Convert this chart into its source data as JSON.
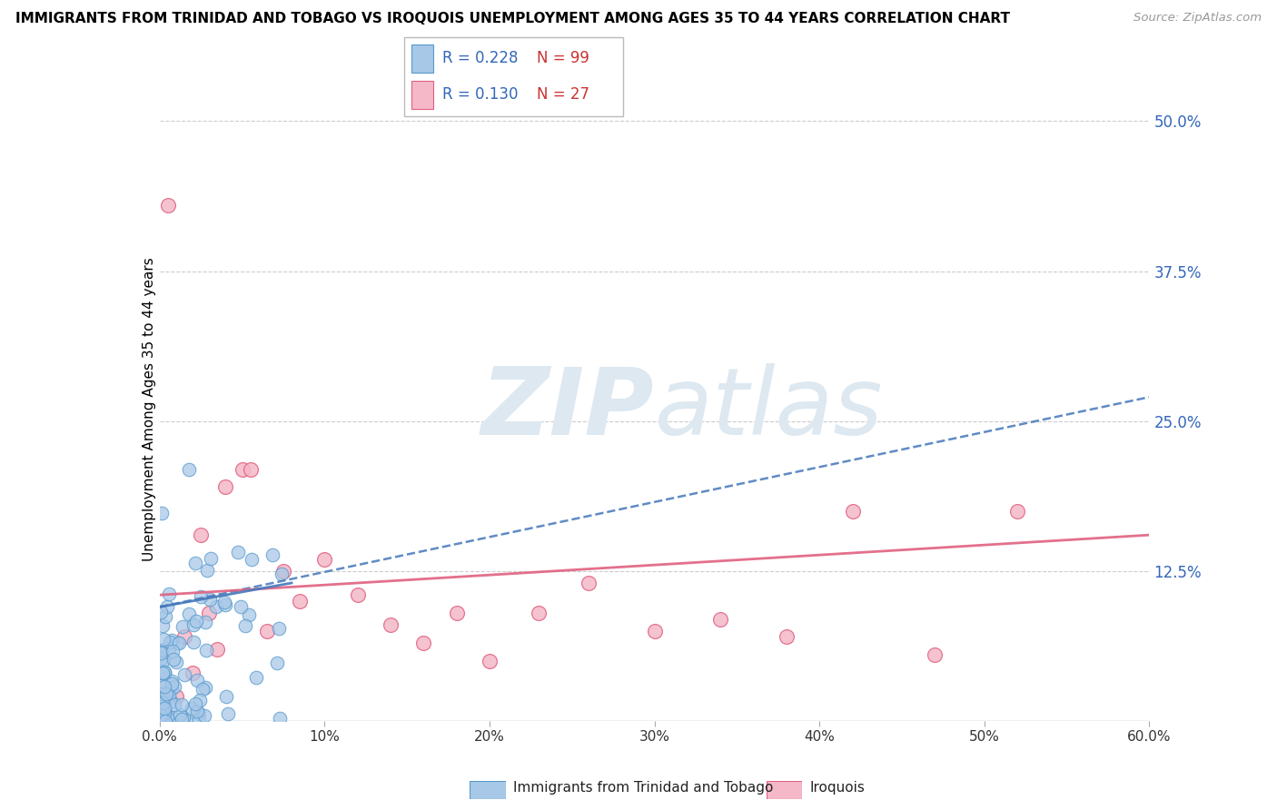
{
  "title": "IMMIGRANTS FROM TRINIDAD AND TOBAGO VS IROQUOIS UNEMPLOYMENT AMONG AGES 35 TO 44 YEARS CORRELATION CHART",
  "source": "Source: ZipAtlas.com",
  "ylabel": "Unemployment Among Ages 35 to 44 years",
  "right_yticks": [
    0.0,
    0.125,
    0.25,
    0.375,
    0.5
  ],
  "right_yticklabels": [
    "",
    "12.5%",
    "25.0%",
    "37.5%",
    "50.0%"
  ],
  "legend1_R": "0.228",
  "legend1_N": "99",
  "legend2_R": "0.130",
  "legend2_N": "27",
  "legend1_label": "Immigrants from Trinidad and Tobago",
  "legend2_label": "Iroquois",
  "blue_color": "#a8c8e8",
  "blue_edge_color": "#5599cc",
  "pink_color": "#f4b8c8",
  "pink_edge_color": "#e06080",
  "blue_line_color": "#4477bb",
  "pink_line_color": "#ee6688",
  "legend_R_color": "#3366bb",
  "legend_N_color": "#cc3333",
  "watermark_zip": "ZIP",
  "watermark_atlas": "atlas",
  "watermark_color": "#dde8f0",
  "xlim": [
    0.0,
    0.6
  ],
  "ylim": [
    0.0,
    0.52
  ],
  "blue_trend_y_start": 0.095,
  "blue_trend_y_end": 0.27,
  "pink_trend_y_start": 0.105,
  "pink_trend_y_end": 0.155,
  "xtick_labels": [
    "0.0%",
    "10%",
    "20%",
    "30%",
    "40%",
    "50%",
    "60.0%"
  ],
  "xtick_values": [
    0.0,
    0.1,
    0.2,
    0.3,
    0.4,
    0.5,
    0.6
  ]
}
